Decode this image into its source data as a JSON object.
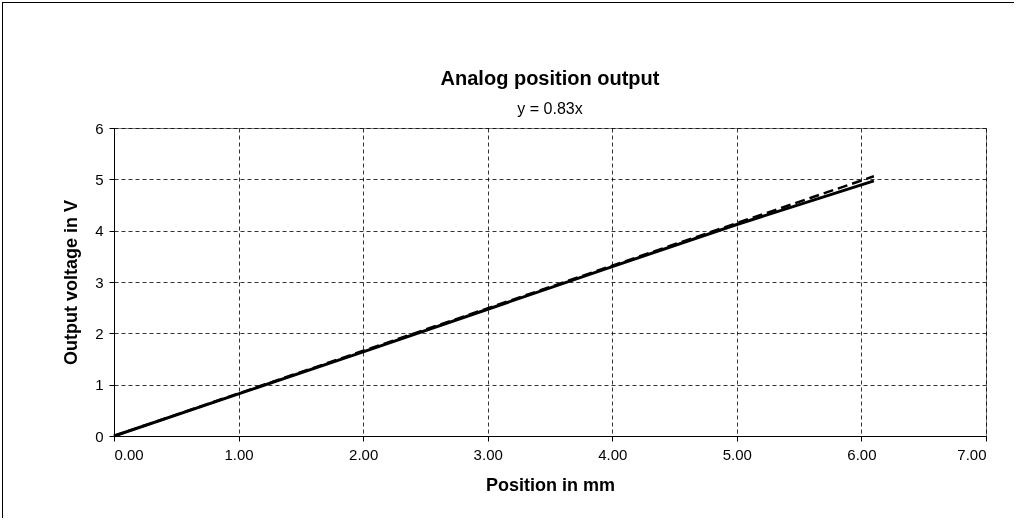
{
  "chart_data": {
    "type": "line",
    "title": "Analog position output",
    "xlabel": "Position in mm",
    "ylabel": "Output voltage in V",
    "annotations": [
      "y = 0.83x"
    ],
    "series": [
      {
        "color": "#000000",
        "x": [
          0,
          1,
          2,
          3,
          4,
          5,
          6.1
        ],
        "values": [
          0,
          0.82,
          1.64,
          2.47,
          3.3,
          4.12,
          4.97
        ],
        "line_style": "solid"
      },
      {
        "type": "line",
        "color": "#000000",
        "x": [
          0,
          6.1
        ],
        "values": [
          0,
          5.06
        ],
        "line_style": "dashed"
      }
    ],
    "xlim": [
      0,
      7
    ],
    "xticks": [
      {
        "value": 0,
        "label": "0.00"
      },
      {
        "value": 1,
        "label": "1.00"
      },
      {
        "value": 2,
        "label": "2.00"
      },
      {
        "value": 3,
        "label": "3.00"
      },
      {
        "value": 4,
        "label": "4.00"
      },
      {
        "value": 5,
        "label": "5.00"
      },
      {
        "value": 6,
        "label": "6.00"
      },
      {
        "value": 7,
        "label": "7.00"
      }
    ],
    "ylim": [
      0,
      6
    ],
    "yticks": [
      0,
      1,
      2,
      3,
      4,
      5,
      6
    ],
    "grid": true,
    "marker": "none"
  }
}
